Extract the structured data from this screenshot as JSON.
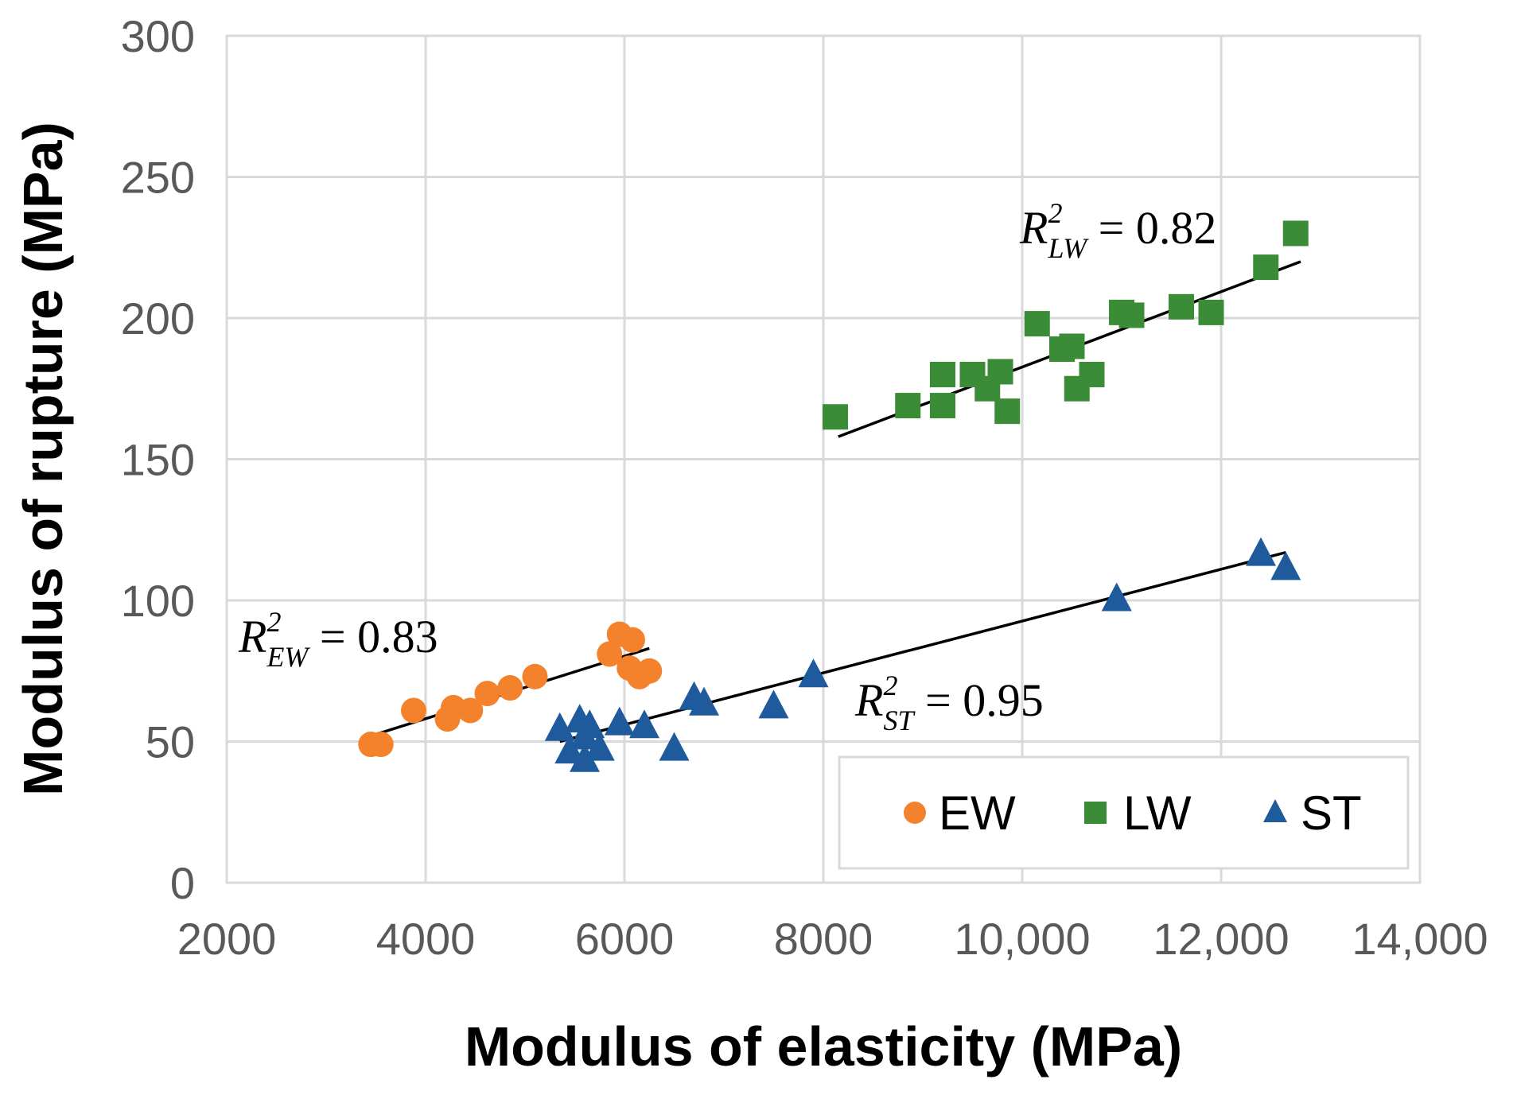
{
  "chart_data": {
    "type": "scatter",
    "xlabel": "Modulus of elasticity (MPa)",
    "ylabel": "Modulus of rupture (MPa)",
    "xlim": [
      2000,
      14000
    ],
    "ylim": [
      0,
      300
    ],
    "grid": true,
    "x_ticks": [
      2000,
      4000,
      6000,
      8000,
      10000,
      12000,
      14000
    ],
    "x_tick_labels": [
      "2000",
      "4000",
      "6000",
      "8000",
      "10,000",
      "12,000",
      "14,000"
    ],
    "y_ticks": [
      0,
      50,
      100,
      150,
      200,
      250,
      300
    ],
    "y_tick_labels": [
      "0",
      "50",
      "100",
      "150",
      "200",
      "250",
      "300"
    ],
    "legend_position": "bottom-right",
    "series": [
      {
        "name": "EW",
        "marker": "circle",
        "color": "#F4812B",
        "points": [
          [
            3450,
            49
          ],
          [
            3550,
            49
          ],
          [
            3880,
            61
          ],
          [
            4220,
            58
          ],
          [
            4280,
            62
          ],
          [
            4450,
            61
          ],
          [
            4620,
            67
          ],
          [
            4850,
            69
          ],
          [
            5100,
            73
          ],
          [
            5850,
            81
          ],
          [
            5950,
            88
          ],
          [
            6080,
            86
          ],
          [
            6050,
            76
          ],
          [
            6150,
            73
          ],
          [
            6250,
            75
          ]
        ],
        "trendline": {
          "from": [
            3450,
            52
          ],
          "to": [
            6250,
            83
          ]
        },
        "r2_label": {
          "prefix": "R",
          "sup": "2",
          "sub": "EW",
          "value": "0.83"
        }
      },
      {
        "name": "LW",
        "marker": "square",
        "color": "#3A8C36",
        "points": [
          [
            8120,
            165
          ],
          [
            8850,
            169
          ],
          [
            9200,
            180
          ],
          [
            9200,
            169
          ],
          [
            9500,
            180
          ],
          [
            9650,
            175
          ],
          [
            9780,
            181
          ],
          [
            9850,
            167
          ],
          [
            10150,
            198
          ],
          [
            10400,
            189
          ],
          [
            10500,
            190
          ],
          [
            10550,
            175
          ],
          [
            10700,
            180
          ],
          [
            11000,
            202
          ],
          [
            11100,
            201
          ],
          [
            11600,
            204
          ],
          [
            11900,
            202
          ],
          [
            12450,
            218
          ],
          [
            12750,
            230
          ]
        ],
        "trendline": {
          "from": [
            8150,
            158
          ],
          "to": [
            12800,
            220
          ]
        },
        "r2_label": {
          "prefix": "R",
          "sup": "2",
          "sub": "LW",
          "value": "0.82"
        }
      },
      {
        "name": "ST",
        "marker": "triangle",
        "color": "#1F5B9C",
        "points": [
          [
            5350,
            55
          ],
          [
            5450,
            47
          ],
          [
            5550,
            58
          ],
          [
            5600,
            44
          ],
          [
            5600,
            52
          ],
          [
            5650,
            56
          ],
          [
            5750,
            48
          ],
          [
            5950,
            57
          ],
          [
            6200,
            56
          ],
          [
            6500,
            48
          ],
          [
            6700,
            66
          ],
          [
            6800,
            64
          ],
          [
            7500,
            63
          ],
          [
            7900,
            74
          ],
          [
            10950,
            101
          ],
          [
            12400,
            117
          ],
          [
            12650,
            112
          ]
        ],
        "trendline": {
          "from": [
            5350,
            50
          ],
          "to": [
            12650,
            117
          ]
        },
        "r2_label": {
          "prefix": "R",
          "sup": "2",
          "sub": "ST",
          "value": "0.95"
        }
      }
    ]
  }
}
